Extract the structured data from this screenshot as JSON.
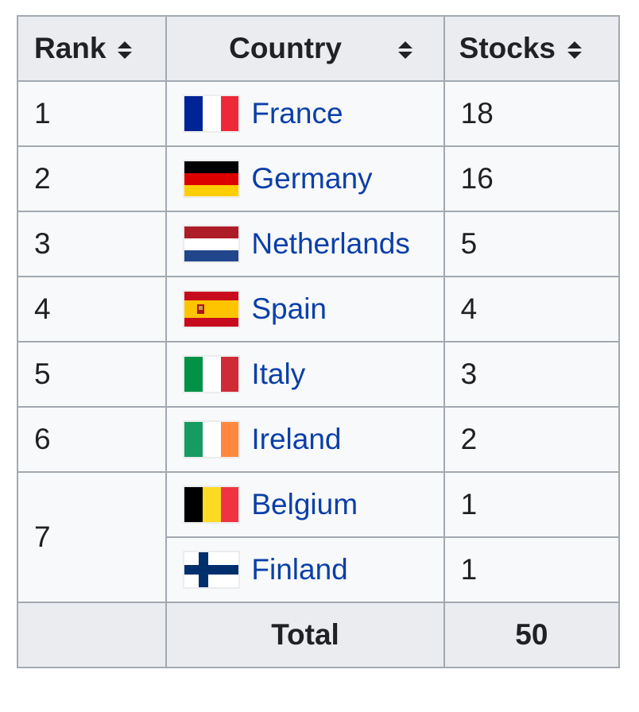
{
  "table": {
    "header": [
      "Rank",
      "Country",
      "Stocks"
    ],
    "rows": [
      {
        "rank": 1,
        "country": "France",
        "stocks": 18
      },
      {
        "rank": 2,
        "country": "Germany",
        "stocks": 16
      },
      {
        "rank": 3,
        "country": "Netherlands",
        "stocks": 5
      },
      {
        "rank": 4,
        "country": "Spain",
        "stocks": 4
      },
      {
        "rank": 5,
        "country": "Italy",
        "stocks": 3
      },
      {
        "rank": 6,
        "country": "Ireland",
        "stocks": 2
      },
      {
        "rank": 7,
        "country": "Belgium",
        "stocks": 1
      },
      {
        "country": "Finland",
        "stocks": 1
      }
    ],
    "footer": {
      "label": "Total",
      "value": 50
    }
  }
}
